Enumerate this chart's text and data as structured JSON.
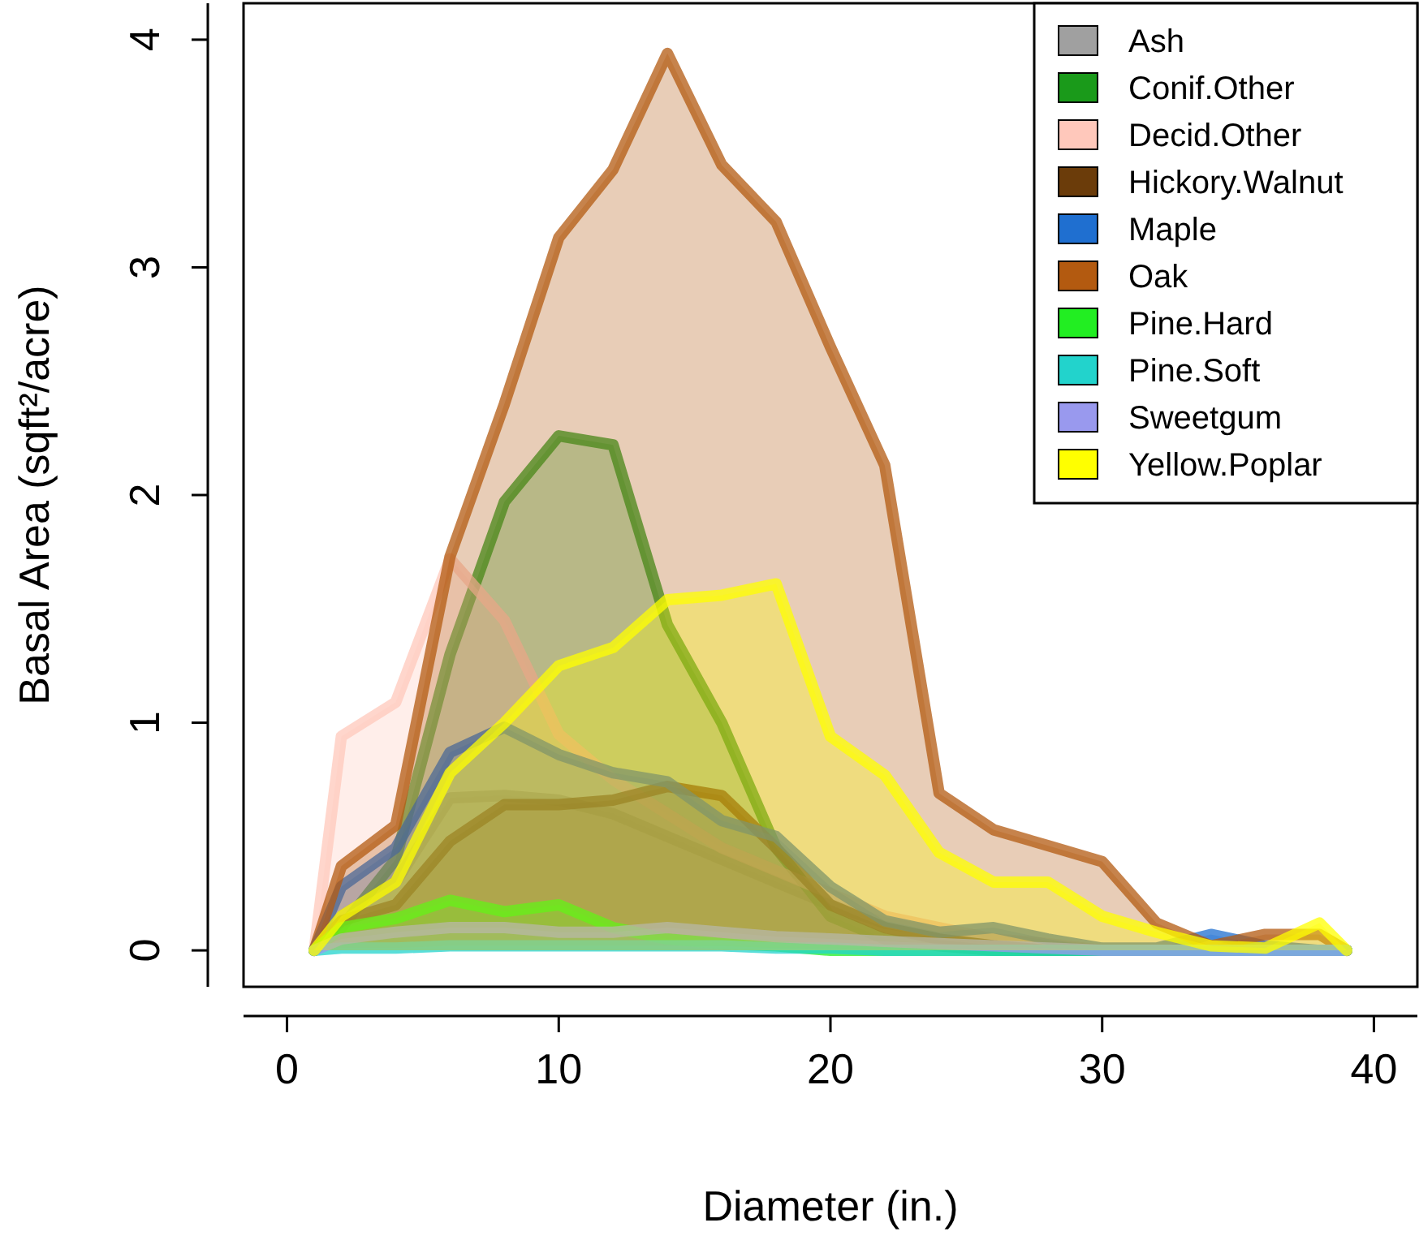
{
  "chart_data": {
    "type": "area",
    "xlabel": "Diameter (in.)",
    "ylabel": "Basal Area (sqft²/acre)",
    "x": [
      1,
      2,
      4,
      6,
      8,
      10,
      12,
      14,
      16,
      18,
      20,
      22,
      24,
      26,
      28,
      30,
      32,
      34,
      36,
      38,
      39
    ],
    "xlim": [
      -1.6,
      41.6
    ],
    "xticks": [
      0,
      10,
      20,
      30,
      40
    ],
    "ylim": [
      -0.16,
      4.16
    ],
    "yticks": [
      0,
      1,
      2,
      3,
      4
    ],
    "grid": false,
    "legend": "top right",
    "line_style": "solid",
    "marker": "none",
    "series": [
      {
        "name": "Ash",
        "color": "#a0a0a0",
        "values": [
          0,
          0.15,
          0.3,
          0.67,
          0.68,
          0.66,
          0.6,
          0.5,
          0.4,
          0.3,
          0.2,
          0.12,
          0.08,
          0.05,
          0.02,
          0,
          0,
          0,
          0,
          0,
          0
        ]
      },
      {
        "name": "Conif.Other",
        "color": "#1a9a1a",
        "values": [
          0,
          0.1,
          0.4,
          1.3,
          1.97,
          2.26,
          2.22,
          1.43,
          1.0,
          0.45,
          0.15,
          0.05,
          0.02,
          0,
          0,
          0,
          0,
          0,
          0,
          0,
          0
        ]
      },
      {
        "name": "Decid.Other",
        "color": "#ffc8bb",
        "values": [
          0,
          0.94,
          1.09,
          1.72,
          1.45,
          0.95,
          0.75,
          0.6,
          0.45,
          0.35,
          0.25,
          0.15,
          0.1,
          0.05,
          0.03,
          0,
          0,
          0,
          0,
          0,
          0
        ]
      },
      {
        "name": "Hickory.Walnut",
        "color": "#6b3c0a",
        "values": [
          0,
          0.13,
          0.2,
          0.48,
          0.64,
          0.64,
          0.66,
          0.72,
          0.68,
          0.45,
          0.2,
          0.1,
          0.05,
          0.02,
          0,
          0,
          0,
          0,
          0,
          0,
          0
        ]
      },
      {
        "name": "Maple",
        "color": "#1f6fd0",
        "values": [
          0,
          0.28,
          0.45,
          0.87,
          0.98,
          0.86,
          0.78,
          0.74,
          0.57,
          0.5,
          0.28,
          0.13,
          0.08,
          0.1,
          0.05,
          0.01,
          0.01,
          0.07,
          0.02,
          0,
          0
        ]
      },
      {
        "name": "Oak",
        "color": "#b35a10",
        "values": [
          0,
          0.37,
          0.55,
          1.73,
          2.4,
          3.13,
          3.43,
          3.94,
          3.45,
          3.2,
          2.65,
          2.13,
          0.69,
          0.53,
          0.46,
          0.39,
          0.12,
          0.02,
          0.07,
          0.07,
          0
        ]
      },
      {
        "name": "Pine.Hard",
        "color": "#22ee22",
        "values": [
          0,
          0.1,
          0.14,
          0.22,
          0.17,
          0.2,
          0.1,
          0.05,
          0.03,
          0.02,
          0,
          0,
          0,
          0,
          0,
          0,
          0,
          0,
          0,
          0,
          0
        ]
      },
      {
        "name": "Pine.Soft",
        "color": "#22d3cc",
        "values": [
          0,
          0.01,
          0.01,
          0.02,
          0.02,
          0.02,
          0.02,
          0.02,
          0.02,
          0.01,
          0.01,
          0,
          0,
          0,
          0,
          0,
          0,
          0,
          0,
          0,
          0
        ]
      },
      {
        "name": "Sweetgum",
        "color": "#9999ee",
        "values": [
          0,
          0.05,
          0.08,
          0.1,
          0.1,
          0.08,
          0.08,
          0.1,
          0.08,
          0.06,
          0.05,
          0.04,
          0.03,
          0.02,
          0.01,
          0,
          0,
          0,
          0,
          0,
          0
        ]
      },
      {
        "name": "Yellow.Poplar",
        "color": "#ffff00",
        "values": [
          0,
          0.15,
          0.3,
          0.78,
          1.0,
          1.25,
          1.33,
          1.54,
          1.56,
          1.61,
          0.94,
          0.77,
          0.43,
          0.3,
          0.3,
          0.15,
          0.08,
          0.02,
          0.01,
          0.12,
          0
        ]
      }
    ]
  }
}
